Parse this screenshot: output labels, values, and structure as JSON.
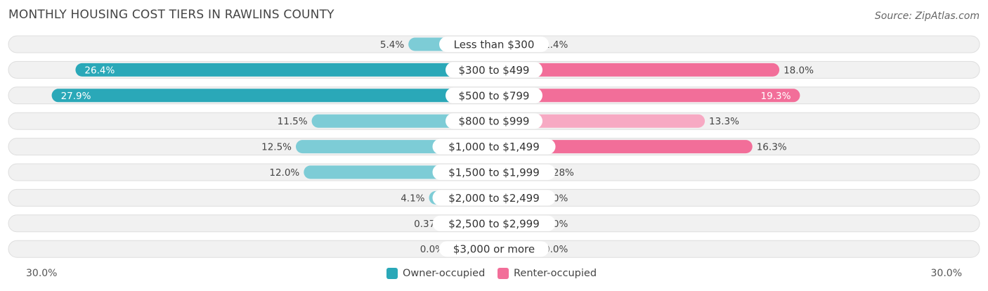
{
  "header": {
    "title": "MONTHLY HOUSING COST TIERS IN RAWLINS COUNTY",
    "source": "Source: ZipAtlas.com"
  },
  "legend": {
    "owner_label": "Owner-occupied",
    "renter_label": "Renter-occupied"
  },
  "axis": {
    "left_label": "30.0%",
    "right_label": "30.0%"
  },
  "colors": {
    "owner_strong": "#2aa8b8",
    "owner_light": "#7dccd6",
    "renter_strong": "#f26e99",
    "renter_light": "#f7a9c3",
    "track": "#f1f1f1",
    "track_border": "#dedede"
  },
  "chart_data": {
    "type": "bar",
    "orientation": "diverging-horizontal",
    "xlim": [
      -30,
      30
    ],
    "categories": [
      "Less than $300",
      "$300 to $499",
      "$500 to $799",
      "$800 to $999",
      "$1,000 to $1,499",
      "$1,500 to $1,999",
      "$2,000 to $2,499",
      "$2,500 to $2,999",
      "$3,000 or more"
    ],
    "series": [
      {
        "name": "Owner-occupied",
        "side": "left",
        "values": [
          5.4,
          26.4,
          27.9,
          11.5,
          12.5,
          12.0,
          4.1,
          0.37,
          0.0
        ],
        "labels": [
          "5.4%",
          "26.4%",
          "27.9%",
          "11.5%",
          "12.5%",
          "12.0%",
          "4.1%",
          "0.37%",
          "0.0%"
        ]
      },
      {
        "name": "Renter-occupied",
        "side": "right",
        "values": [
          1.4,
          18.0,
          19.3,
          13.3,
          16.3,
          0.28,
          0.0,
          0.0,
          0.0
        ],
        "labels": [
          "1.4%",
          "18.0%",
          "19.3%",
          "13.3%",
          "16.3%",
          "0.28%",
          "0.0%",
          "0.0%",
          "0.0%"
        ]
      }
    ]
  }
}
